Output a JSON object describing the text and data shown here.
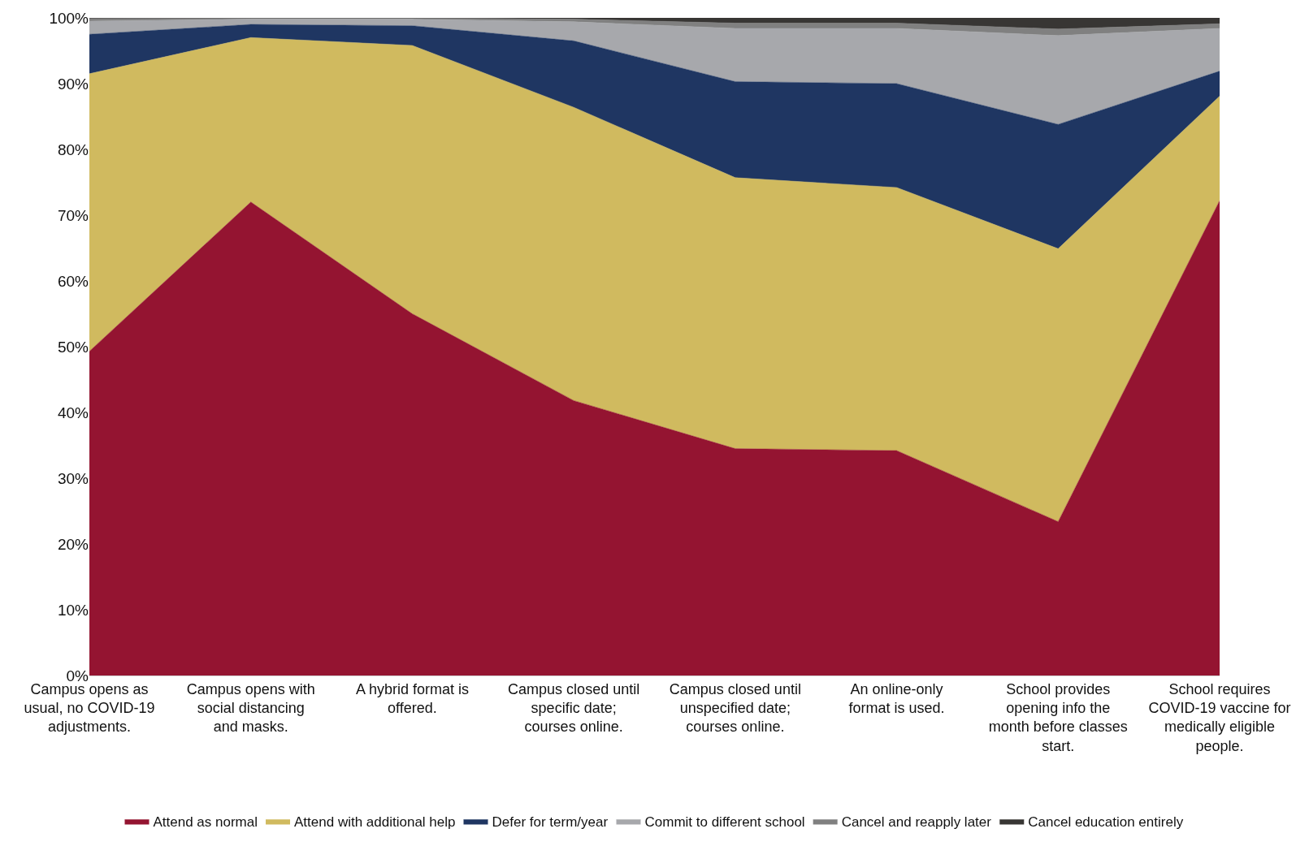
{
  "chart_data": {
    "type": "area",
    "stacked": true,
    "categories": [
      "Campus opens as usual, no COVID-19 adjustments.",
      "Campus opens with social distancing and masks.",
      "A hybrid format is offered.",
      "Campus closed until specific date; courses online.",
      "Campus closed until unspecified date; courses online.",
      "An online-only format is used.",
      "School provides opening info the month before classes start.",
      "School requires COVID-19 vaccine for medically eligible people."
    ],
    "series": [
      {
        "name": "Attend as normal",
        "color": "#941431",
        "values": [
          49.3,
          72.0,
          55.0,
          41.8,
          34.5,
          34.2,
          23.4,
          72.2
        ]
      },
      {
        "name": "Attend with additional help",
        "color": "#d0ba5f",
        "values": [
          42.2,
          25.0,
          40.8,
          44.6,
          41.2,
          40.0,
          41.5,
          15.9
        ]
      },
      {
        "name": "Defer for term/year",
        "color": "#1f3662",
        "values": [
          6.0,
          2.0,
          3.0,
          10.1,
          14.6,
          15.8,
          18.9,
          3.8
        ]
      },
      {
        "name": "Commit to different school",
        "color": "#a7a8ac",
        "values": [
          2.0,
          0.8,
          1.0,
          2.9,
          8.1,
          8.4,
          13.5,
          6.5
        ]
      },
      {
        "name": "Cancel and reapply later",
        "color": "#808080",
        "values": [
          0.4,
          0.2,
          0.2,
          0.4,
          0.8,
          0.8,
          1.0,
          0.7
        ]
      },
      {
        "name": "Cancel education entirely",
        "color": "#383634",
        "values": [
          0.1,
          0.0,
          0.0,
          0.2,
          0.8,
          0.8,
          1.7,
          0.9
        ]
      }
    ],
    "ylim": [
      0,
      100
    ],
    "yticks": [
      {
        "value": 0,
        "label": "0%"
      },
      {
        "value": 10,
        "label": "10%"
      },
      {
        "value": 20,
        "label": "20%"
      },
      {
        "value": 30,
        "label": "30%"
      },
      {
        "value": 40,
        "label": "40%"
      },
      {
        "value": 50,
        "label": "50%"
      },
      {
        "value": 60,
        "label": "60%"
      },
      {
        "value": 70,
        "label": "70%"
      },
      {
        "value": 80,
        "label": "80%"
      },
      {
        "value": 90,
        "label": "90%"
      },
      {
        "value": 100,
        "label": "100%"
      }
    ],
    "legend": "bottom"
  }
}
